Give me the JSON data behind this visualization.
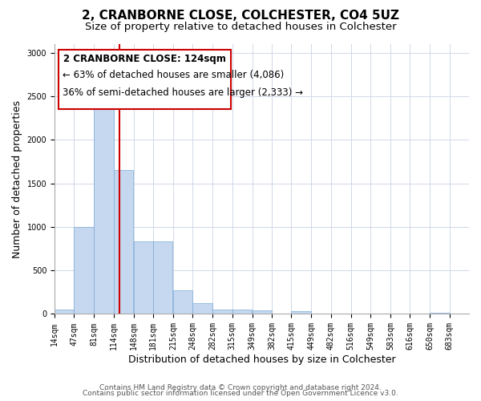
{
  "title": "2, CRANBORNE CLOSE, COLCHESTER, CO4 5UZ",
  "subtitle": "Size of property relative to detached houses in Colchester",
  "xlabel": "Distribution of detached houses by size in Colchester",
  "ylabel": "Number of detached properties",
  "bin_labels": [
    "14sqm",
    "47sqm",
    "81sqm",
    "114sqm",
    "148sqm",
    "181sqm",
    "215sqm",
    "248sqm",
    "282sqm",
    "315sqm",
    "349sqm",
    "382sqm",
    "415sqm",
    "449sqm",
    "482sqm",
    "516sqm",
    "549sqm",
    "583sqm",
    "616sqm",
    "650sqm",
    "683sqm"
  ],
  "bin_edges": [
    14,
    47,
    81,
    114,
    148,
    181,
    215,
    248,
    282,
    315,
    349,
    382,
    415,
    449,
    482,
    516,
    549,
    583,
    616,
    650,
    683,
    716
  ],
  "bar_heights": [
    55,
    1000,
    2470,
    1655,
    835,
    835,
    270,
    120,
    50,
    50,
    40,
    0,
    30,
    0,
    0,
    0,
    0,
    0,
    0,
    15,
    0
  ],
  "bar_color": "#c5d8f0",
  "bar_edgecolor": "#7baad4",
  "vline_x": 124,
  "vline_color": "#cc0000",
  "ylim": [
    0,
    3100
  ],
  "yticks": [
    0,
    500,
    1000,
    1500,
    2000,
    2500,
    3000
  ],
  "annotation_title": "2 CRANBORNE CLOSE: 124sqm",
  "annotation_line1": "← 63% of detached houses are smaller (4,086)",
  "annotation_line2": "36% of semi-detached houses are larger (2,333) →",
  "footer_line1": "Contains HM Land Registry data © Crown copyright and database right 2024.",
  "footer_line2": "Contains public sector information licensed under the Open Government Licence v3.0.",
  "background_color": "#ffffff",
  "grid_color": "#d0d8e8",
  "title_fontsize": 11,
  "subtitle_fontsize": 9.5,
  "axis_label_fontsize": 9,
  "tick_fontsize": 7,
  "annotation_fontsize": 8.5,
  "footer_fontsize": 6.5
}
